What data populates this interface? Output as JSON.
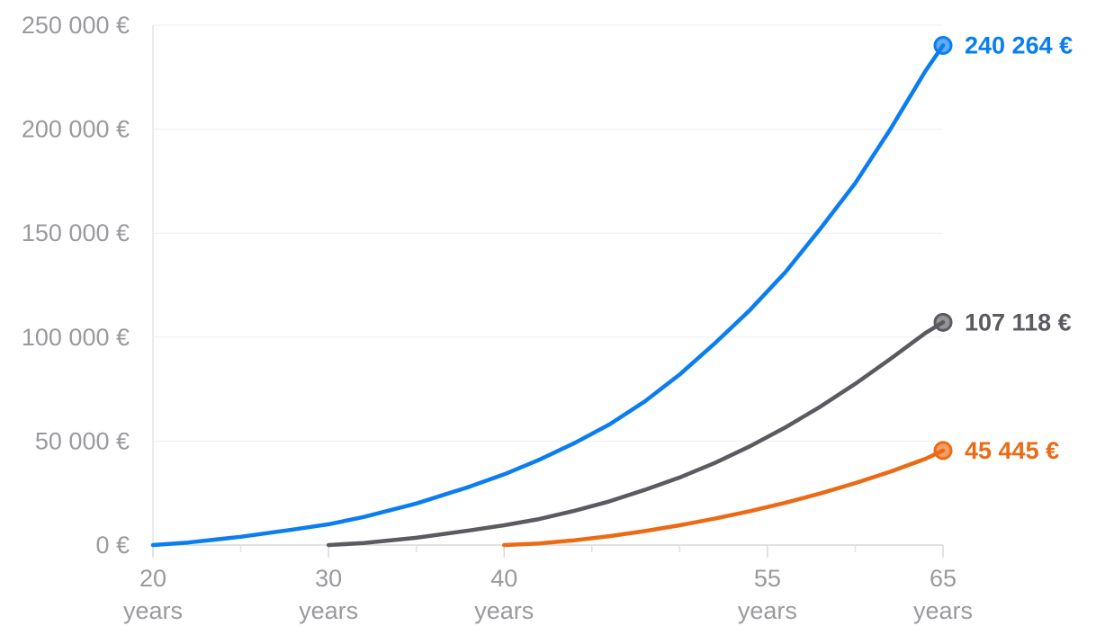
{
  "chart_data": {
    "type": "line",
    "title": "",
    "xlabel": "",
    "ylabel": "",
    "xlim": [
      20,
      65
    ],
    "ylim": [
      0,
      250000
    ],
    "grid": true,
    "legend": "none",
    "x_ticks": [
      {
        "value": 20,
        "line1": "20",
        "line2": "years"
      },
      {
        "value": 30,
        "line1": "30",
        "line2": "years"
      },
      {
        "value": 40,
        "line1": "40",
        "line2": "years"
      },
      {
        "value": 55,
        "line1": "55",
        "line2": "years"
      },
      {
        "value": 65,
        "line1": "65",
        "line2": "years"
      }
    ],
    "x_minor_ticks": [
      25,
      35,
      45,
      50,
      60
    ],
    "y_ticks": [
      {
        "value": 0,
        "label": "0 €"
      },
      {
        "value": 50000,
        "label": "50 000 €"
      },
      {
        "value": 100000,
        "label": "100 000 €"
      },
      {
        "value": 150000,
        "label": "150 000 €"
      },
      {
        "value": 200000,
        "label": "200 000 €"
      },
      {
        "value": 250000,
        "label": "250 000 €"
      }
    ],
    "series": [
      {
        "color": "#0a7ef0",
        "end_label": "240 264 €",
        "x": [
          20,
          22,
          25,
          28,
          30,
          32,
          35,
          38,
          40,
          42,
          44,
          46,
          48,
          50,
          52,
          54,
          56,
          58,
          60,
          62,
          64,
          65
        ],
        "y": [
          0,
          1200,
          4000,
          7500,
          10000,
          13500,
          20000,
          28000,
          34000,
          41000,
          49000,
          58000,
          69000,
          82000,
          97000,
          113000,
          131000,
          152000,
          174000,
          200000,
          228000,
          240264
        ]
      },
      {
        "color": "#5a5a60",
        "end_label": "107 118 €",
        "x": [
          30,
          32,
          35,
          38,
          40,
          42,
          44,
          46,
          48,
          50,
          52,
          54,
          56,
          58,
          60,
          62,
          64,
          65
        ],
        "y": [
          0,
          1000,
          3500,
          7000,
          9500,
          12500,
          16500,
          21000,
          26500,
          32500,
          39500,
          47500,
          56500,
          66500,
          77500,
          89500,
          102000,
          107118
        ]
      },
      {
        "color": "#ec6a14",
        "end_label": "45 445 €",
        "x": [
          40,
          42,
          44,
          46,
          48,
          50,
          52,
          54,
          56,
          58,
          60,
          62,
          64,
          65
        ],
        "y": [
          0,
          800,
          2300,
          4300,
          6700,
          9500,
          12700,
          16300,
          20300,
          24800,
          29800,
          35300,
          41500,
          45445
        ]
      }
    ]
  }
}
